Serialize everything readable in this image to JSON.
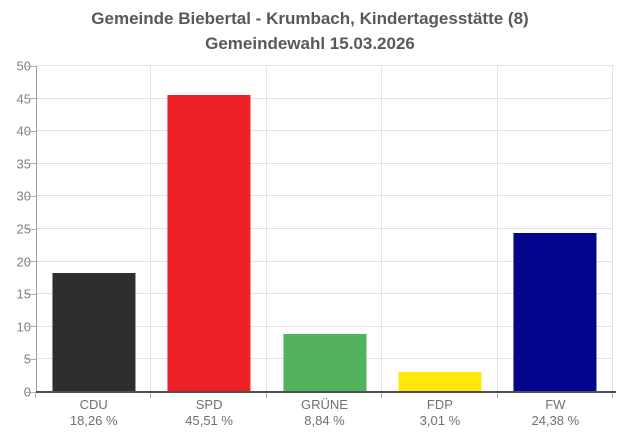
{
  "title": {
    "line1": "Gemeinde Biebertal - Krumbach, Kindertagesstätte (8)",
    "line2": "Gemeindewahl 15.03.2026"
  },
  "chart_data": {
    "type": "bar",
    "title": "Gemeinde Biebertal - Krumbach, Kindertagesstätte (8) Gemeindewahl 15.03.2026",
    "categories": [
      "CDU",
      "SPD",
      "GRÜNE",
      "FDP",
      "FW"
    ],
    "values": [
      18.26,
      45.51,
      8.84,
      3.01,
      24.38
    ],
    "value_labels": [
      "18,26 %",
      "45,51 %",
      "8,84 %",
      "3,01 %",
      "24,38 %"
    ],
    "bar_colors": [
      "#2e2e30",
      "#ee2129",
      "#53b25c",
      "#ffe70a",
      "#04058c"
    ],
    "xlabel": "",
    "ylabel": "",
    "ylim": [
      0,
      50
    ],
    "yticks": [
      0,
      5,
      10,
      15,
      20,
      25,
      30,
      35,
      40,
      45,
      50
    ],
    "grid": true,
    "legend": false
  },
  "colors": {
    "title_text": "#595959",
    "axis_label_text": "#808080",
    "category_label_text": "#707070",
    "gridline": "#e2e2e2",
    "y_axis_line": "#9e9e9e",
    "x_axis_line": "#4f4f4f",
    "background": "#ffffff"
  }
}
